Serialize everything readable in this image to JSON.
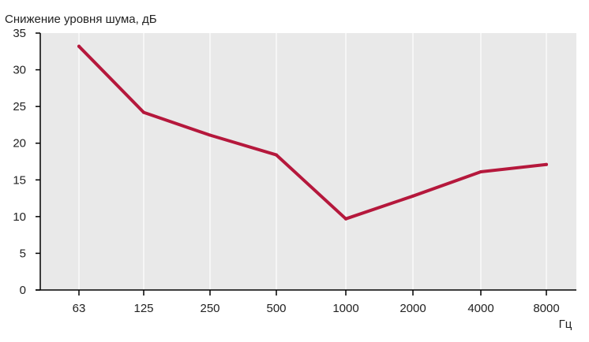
{
  "chart_data": {
    "type": "line",
    "title": "",
    "ylabel": "Снижение уровня шума, дБ",
    "xlabel": "Гц",
    "categories": [
      "63",
      "125",
      "250",
      "500",
      "1000",
      "2000",
      "4000",
      "8000"
    ],
    "series": [
      {
        "values": [
          33.2,
          24.2,
          21.1,
          18.4,
          9.7,
          12.8,
          16.1,
          17.1
        ]
      }
    ],
    "ylim": [
      0,
      35
    ],
    "yticks": [
      0,
      5,
      10,
      15,
      20,
      25,
      30,
      35
    ],
    "grid": "vertical",
    "colors": {
      "line": "#b5183c",
      "plot_background": "#e9e9e9",
      "gridline": "#ffffff",
      "axis": "#000000"
    }
  }
}
